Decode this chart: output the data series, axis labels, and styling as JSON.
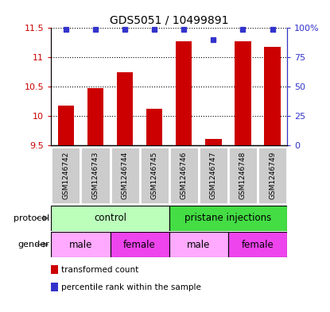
{
  "title": "GDS5051 / 10499891",
  "samples": [
    "GSM1246742",
    "GSM1246743",
    "GSM1246744",
    "GSM1246745",
    "GSM1246746",
    "GSM1246747",
    "GSM1246748",
    "GSM1246749"
  ],
  "transformed_counts": [
    10.18,
    10.48,
    10.75,
    10.12,
    11.28,
    9.6,
    11.28,
    11.18
  ],
  "percentile_ranks": [
    99,
    99,
    99,
    99,
    99,
    90,
    99,
    99
  ],
  "ylim_left": [
    9.5,
    11.5
  ],
  "yticks_left": [
    9.5,
    10.0,
    10.5,
    11.0,
    11.5
  ],
  "ytick_labels_left": [
    "9.5",
    "10",
    "10.5",
    "11",
    "11.5"
  ],
  "ylim_right": [
    0,
    100
  ],
  "yticks_right": [
    0,
    25,
    50,
    75,
    100
  ],
  "ytick_labels_right": [
    "0",
    "25",
    "50",
    "75",
    "100%"
  ],
  "bar_color": "#cc0000",
  "dot_color": "#3333cc",
  "bar_bottom": 9.5,
  "protocol_groups": [
    {
      "label": "control",
      "start": 0,
      "end": 4,
      "color": "#bbffbb"
    },
    {
      "label": "pristane injections",
      "start": 4,
      "end": 8,
      "color": "#44dd44"
    }
  ],
  "gender_groups": [
    {
      "label": "male",
      "start": 0,
      "end": 2,
      "color": "#ffaaff"
    },
    {
      "label": "female",
      "start": 2,
      "end": 4,
      "color": "#ee44ee"
    },
    {
      "label": "male",
      "start": 4,
      "end": 6,
      "color": "#ffaaff"
    },
    {
      "label": "female",
      "start": 6,
      "end": 8,
      "color": "#ee44ee"
    }
  ],
  "sample_box_color": "#cccccc",
  "legend_items": [
    {
      "label": "transformed count",
      "color": "#cc0000"
    },
    {
      "label": "percentile rank within the sample",
      "color": "#3333cc"
    }
  ]
}
